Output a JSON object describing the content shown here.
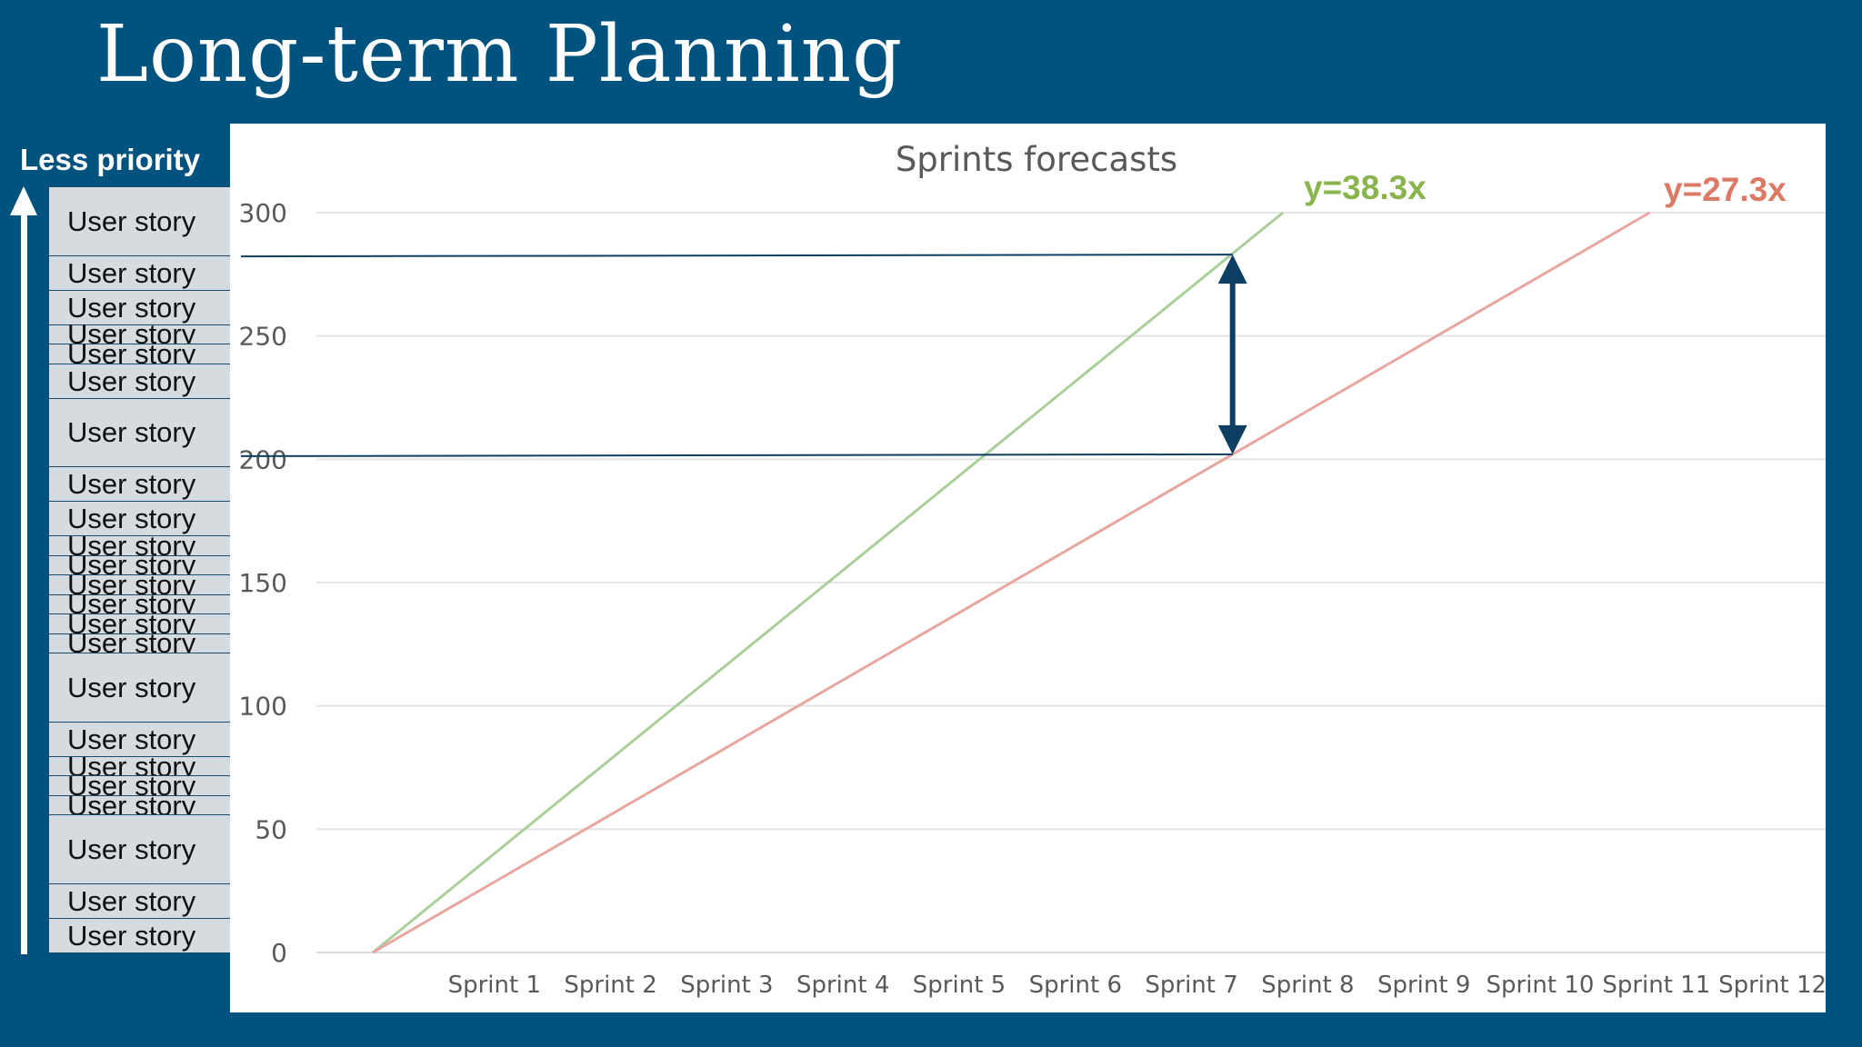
{
  "slide": {
    "title": "Long-term Planning",
    "priority_label": "Less priority"
  },
  "story_list": {
    "items": [
      {
        "label": "User story",
        "points": 8
      },
      {
        "label": "User story",
        "points": 3
      },
      {
        "label": "User story",
        "points": 3
      },
      {
        "label": "User story",
        "points": 1
      },
      {
        "label": "User story",
        "points": 1
      },
      {
        "label": "User story",
        "points": 3
      },
      {
        "label": "User story",
        "points": 8
      },
      {
        "label": "User story",
        "points": 3
      },
      {
        "label": "User story",
        "points": 3
      },
      {
        "label": "User story",
        "points": 1
      },
      {
        "label": "User story",
        "points": 1
      },
      {
        "label": "User story",
        "points": 1
      },
      {
        "label": "User story",
        "points": 1
      },
      {
        "label": "User story",
        "points": 1
      },
      {
        "label": "User story",
        "points": 1
      },
      {
        "label": "User story",
        "points": 8
      },
      {
        "label": "User story",
        "points": 3
      },
      {
        "label": "User story",
        "points": 1
      },
      {
        "label": "User story",
        "points": 1
      },
      {
        "label": "User story",
        "points": 1
      },
      {
        "label": "User story",
        "points": 8
      },
      {
        "label": "User story",
        "points": 3
      },
      {
        "label": "User story",
        "points": 3
      }
    ]
  },
  "chart_data": {
    "type": "line",
    "title": "Sprints forecasts",
    "categories": [
      "",
      "Sprint 1",
      "Sprint 2",
      "Sprint 3",
      "Sprint 4",
      "Sprint 5",
      "Sprint 6",
      "Sprint 7",
      "Sprint 8",
      "Sprint 9",
      "Sprint 10",
      "Sprint 11",
      "Sprint 12"
    ],
    "ylim": [
      0,
      300
    ],
    "yticks": [
      0,
      50,
      100,
      150,
      200,
      250,
      300
    ],
    "grid": true,
    "series": [
      {
        "label": "y=38.3x",
        "slope": 38.3,
        "color": "#aacf9b",
        "label_color": "#8ab54d"
      },
      {
        "label": "y=27.3x",
        "slope": 27.3,
        "color": "#e8a6a0",
        "label_color": "#dc7a66"
      }
    ],
    "annotation": {
      "x": 7.4,
      "y_high": 283,
      "y_low": 202,
      "color": "#0d3f62"
    }
  }
}
